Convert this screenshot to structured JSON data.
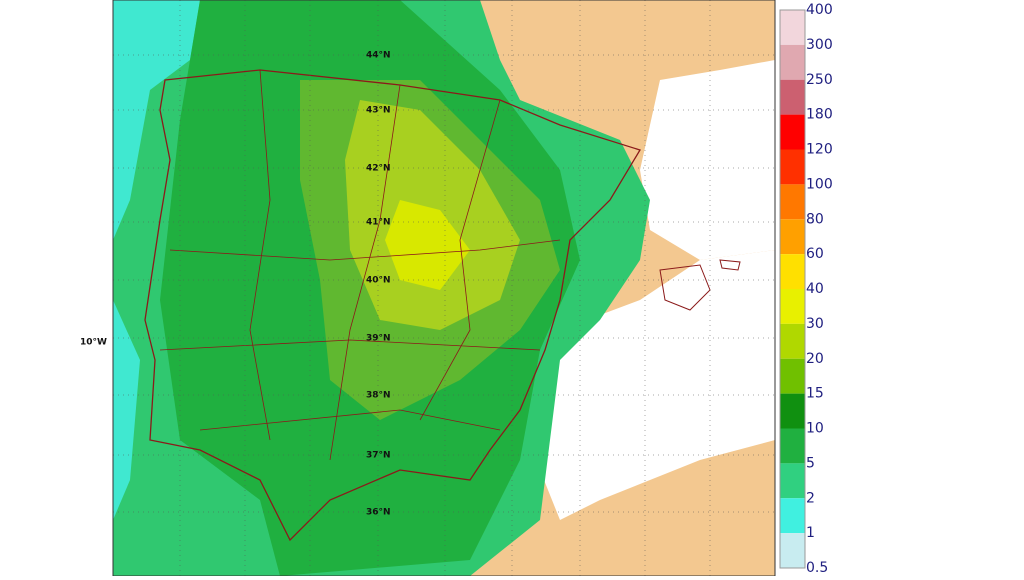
{
  "map": {
    "lat_labels": [
      "44°N",
      "43°N",
      "42°N",
      "41°N",
      "40°N",
      "39°N",
      "38°N",
      "37°N",
      "36°N"
    ],
    "lon_label": "10°W"
  },
  "legend": {
    "levels": [
      400,
      300,
      250,
      180,
      120,
      100,
      80,
      60,
      40,
      30,
      20,
      15,
      10,
      5,
      2,
      1,
      0.5
    ],
    "colors": [
      "#f2d6dc",
      "#e0a8b0",
      "#cc6070",
      "#ff0000",
      "#ff3000",
      "#ff7800",
      "#ffa000",
      "#ffe000",
      "#e8f000",
      "#b0d800",
      "#70c000",
      "#109010",
      "#20b040",
      "#30d080",
      "#40f0e0",
      "#c8ecf0"
    ]
  }
}
